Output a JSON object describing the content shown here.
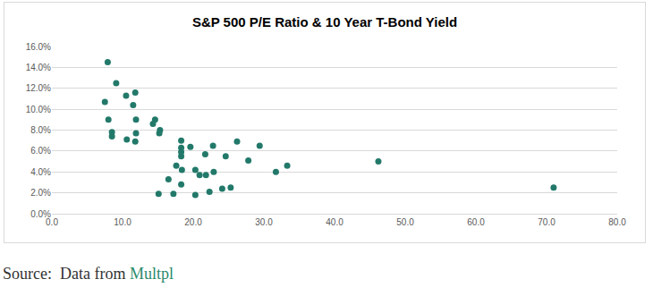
{
  "chart_data": {
    "type": "scatter",
    "title": "S&P 500 P/E Ratio & 10 Year T-Bond Yield",
    "color": "#22796a",
    "marker": "circle",
    "grid": true,
    "x": [
      7.5,
      7.9,
      8.0,
      8.5,
      8.5,
      9.1,
      10.5,
      10.6,
      11.5,
      11.8,
      11.9,
      11.9,
      11.8,
      14.3,
      14.6,
      15.3,
      15.2,
      15.1,
      16.5,
      17.2,
      17.6,
      18.3,
      18.3,
      18.3,
      18.3,
      18.4,
      18.3,
      19.6,
      20.3,
      20.3,
      20.9,
      21.7,
      21.8,
      22.3,
      22.8,
      22.9,
      24.1,
      24.6,
      25.3,
      26.2,
      27.8,
      29.4,
      31.7,
      33.3,
      46.2,
      71.0
    ],
    "values": [
      10.7,
      14.5,
      9.0,
      7.8,
      7.4,
      12.5,
      11.3,
      7.1,
      10.4,
      11.6,
      9.0,
      7.7,
      6.9,
      8.6,
      9.0,
      8.0,
      7.7,
      1.9,
      3.3,
      1.9,
      4.6,
      7.0,
      6.3,
      5.9,
      5.5,
      4.2,
      2.8,
      6.4,
      4.2,
      1.8,
      3.7,
      5.7,
      3.7,
      2.1,
      6.5,
      4.0,
      2.4,
      5.5,
      2.5,
      6.9,
      5.1,
      6.5,
      4.0,
      4.6,
      5.0,
      2.5
    ],
    "xlim": [
      0,
      80
    ],
    "xticks": [
      {
        "value": 0,
        "label": "0.0"
      },
      {
        "value": 10,
        "label": "10.0"
      },
      {
        "value": 20,
        "label": "20.0"
      },
      {
        "value": 30,
        "label": "30.0"
      },
      {
        "value": 40,
        "label": "40.0"
      },
      {
        "value": 50,
        "label": "50.0"
      },
      {
        "value": 60,
        "label": "60.0"
      },
      {
        "value": 70,
        "label": "70.0"
      },
      {
        "value": 80,
        "label": "80.0"
      }
    ],
    "ylim": [
      0,
      16
    ],
    "yticks": [
      {
        "value": 0,
        "label": "0.0%"
      },
      {
        "value": 2,
        "label": "2.0%"
      },
      {
        "value": 4,
        "label": "4.0%"
      },
      {
        "value": 6,
        "label": "6.0%"
      },
      {
        "value": 8,
        "label": "8.0%"
      },
      {
        "value": 10,
        "label": "10.0%"
      },
      {
        "value": 12,
        "label": "12.0%"
      },
      {
        "value": 14,
        "label": "14.0%"
      },
      {
        "value": 16,
        "label": "16.0%"
      }
    ],
    "source_text": "Source:  Data from ",
    "source_link": "Multpl"
  }
}
